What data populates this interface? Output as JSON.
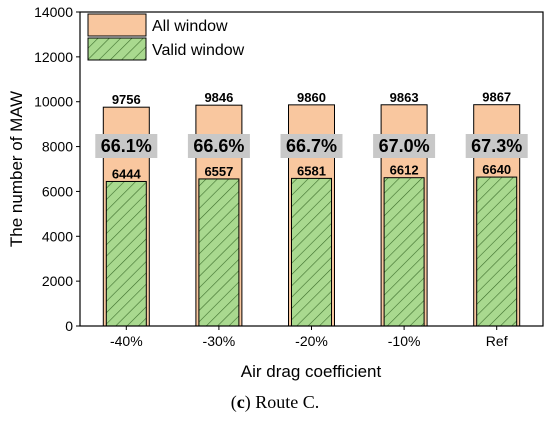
{
  "chart_data": {
    "type": "bar",
    "categories": [
      "-40%",
      "-30%",
      "-20%",
      "-10%",
      "Ref"
    ],
    "series": [
      {
        "name": "All window",
        "values": [
          9756,
          9846,
          9860,
          9863,
          9867
        ],
        "color": "#f9c79f"
      },
      {
        "name": "Valid window",
        "values": [
          6444,
          6557,
          6581,
          6612,
          6640
        ],
        "color": "#a9d98f",
        "hatch": true
      }
    ],
    "percent_labels": [
      "66.1%",
      "66.6%",
      "66.7%",
      "67.0%",
      "67.3%"
    ],
    "percent_label_bg": "#c8c8c8",
    "xlabel": "Air drag coefficient",
    "ylabel": "The number of MAW",
    "ylim": [
      0,
      14000
    ],
    "yticks": [
      0,
      2000,
      4000,
      6000,
      8000,
      10000,
      12000,
      14000
    ],
    "legend_position": "top-left",
    "grid": false
  },
  "caption": {
    "label": "c",
    "text": "Route C."
  }
}
